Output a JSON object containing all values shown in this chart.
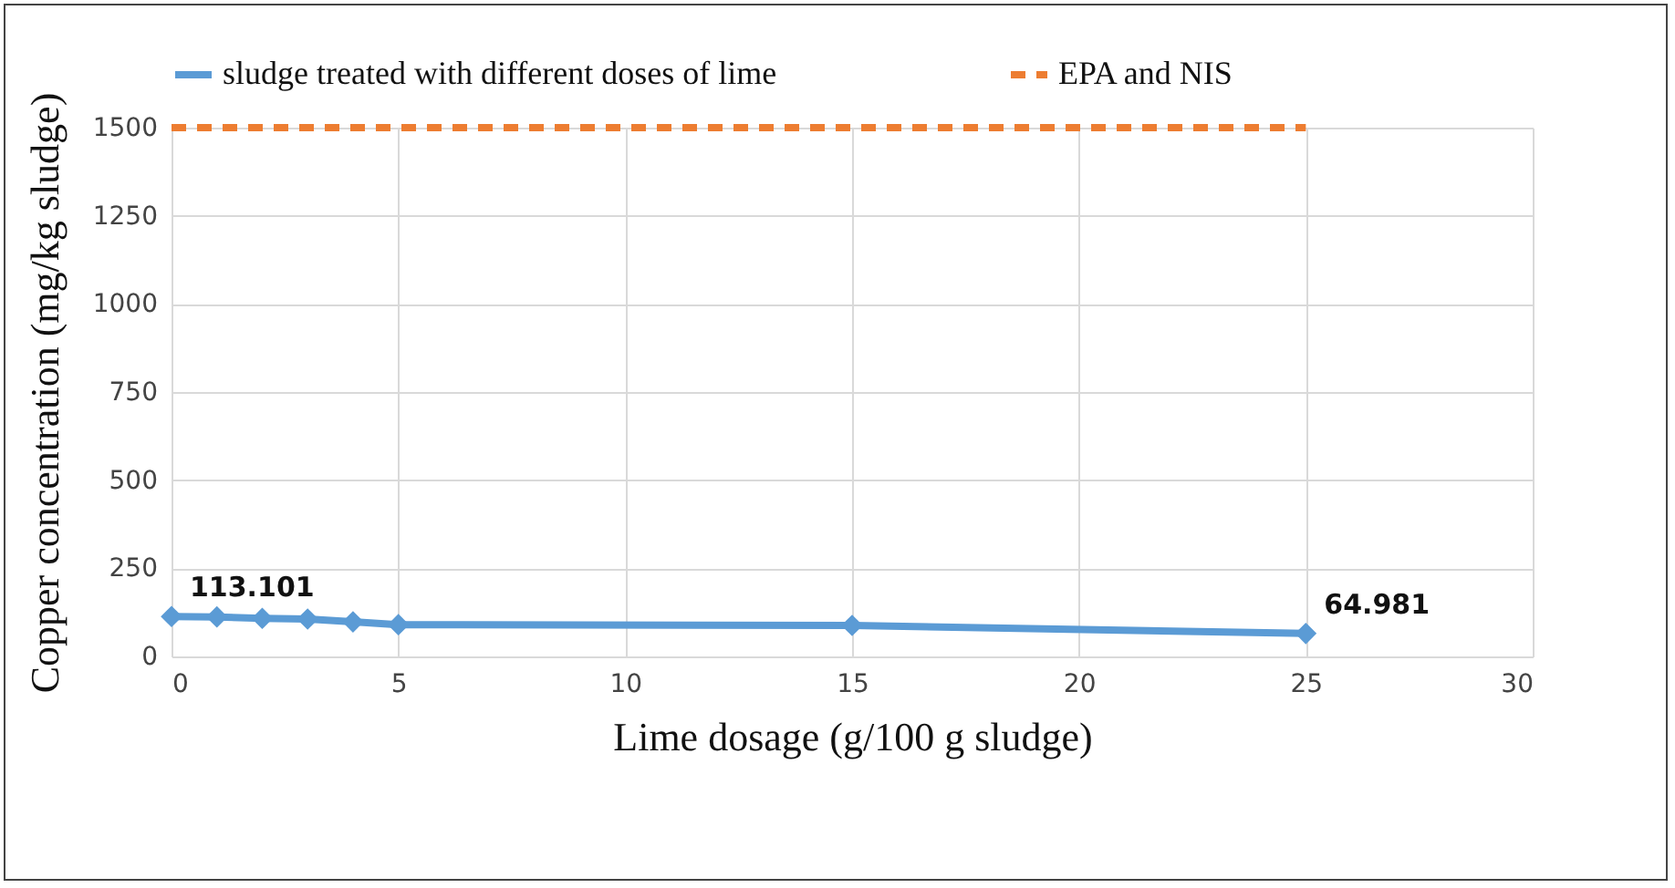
{
  "chart_data": {
    "type": "line",
    "xlabel": "Lime dosage (g/100 g sludge)",
    "ylabel": "Copper concentration (mg/kg sludge)",
    "xlim": [
      0,
      30
    ],
    "xticks": [
      0,
      5,
      10,
      15,
      20,
      25,
      30
    ],
    "ylim": [
      0,
      1500
    ],
    "yticks": [
      0,
      250,
      500,
      750,
      1000,
      1250,
      1500
    ],
    "grid": true,
    "legend": "top",
    "series": [
      {
        "name": "sludge treated with different doses of lime",
        "color": "#5b9bd5",
        "x": [
          0,
          1,
          2,
          3,
          4,
          5,
          15,
          25
        ],
        "values": [
          113.101,
          112,
          108,
          106,
          98,
          90,
          88,
          64.981
        ],
        "marker": "diamond",
        "line_style": "solid"
      },
      {
        "name": "EPA and NIS",
        "color": "#ed7d31",
        "x": [
          0,
          25
        ],
        "values": [
          1500,
          1500
        ],
        "marker": "none",
        "line_style": "dashed"
      }
    ],
    "annotations": [
      {
        "text": "113.101",
        "x": 0,
        "y": 113.101
      },
      {
        "text": "64.981",
        "x": 25,
        "y": 64.981
      }
    ]
  }
}
